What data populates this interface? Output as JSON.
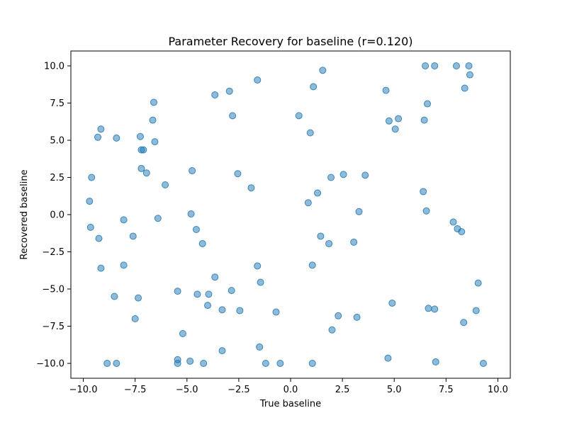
{
  "chart_data": {
    "type": "scatter",
    "title": "Parameter Recovery for baseline (r=0.120)",
    "xlabel": "True baseline",
    "ylabel": "Recovered baseline",
    "xlim": [
      -10.6,
      10.6
    ],
    "ylim": [
      -11.0,
      11.0
    ],
    "xticks": [
      -10.0,
      -7.5,
      -5.0,
      -2.5,
      0.0,
      2.5,
      5.0,
      7.5,
      10.0
    ],
    "yticks": [
      -10.0,
      -7.5,
      -5.0,
      -2.5,
      0.0,
      2.5,
      5.0,
      7.5,
      10.0
    ],
    "xtick_labels": [
      "−10.0",
      "−7.5",
      "−5.0",
      "−2.5",
      "0.0",
      "2.5",
      "5.0",
      "7.5",
      "10.0"
    ],
    "ytick_labels": [
      "−10.0",
      "−7.5",
      "−5.0",
      "−2.5",
      "0.0",
      "2.5",
      "5.0",
      "7.5",
      "10.0"
    ],
    "grid": false,
    "marker_color": "#1f77b4",
    "marker_alpha": 0.5,
    "points": [
      [
        -9.7,
        0.9
      ],
      [
        -9.65,
        -0.85
      ],
      [
        -9.6,
        2.5
      ],
      [
        -9.3,
        5.2
      ],
      [
        -9.25,
        -1.6
      ],
      [
        -9.15,
        5.75
      ],
      [
        -9.15,
        -3.6
      ],
      [
        -8.85,
        -10.0
      ],
      [
        -8.5,
        -5.5
      ],
      [
        -8.4,
        5.15
      ],
      [
        -8.4,
        -10.0
      ],
      [
        -8.05,
        -0.35
      ],
      [
        -8.05,
        -3.4
      ],
      [
        -7.6,
        -1.45
      ],
      [
        -7.5,
        -7.0
      ],
      [
        -7.35,
        -5.6
      ],
      [
        -7.25,
        5.25
      ],
      [
        -7.2,
        4.35
      ],
      [
        -7.1,
        4.35
      ],
      [
        -7.2,
        3.1
      ],
      [
        -6.95,
        2.8
      ],
      [
        -6.65,
        6.35
      ],
      [
        -6.6,
        7.55
      ],
      [
        -6.55,
        4.9
      ],
      [
        -6.4,
        -0.25
      ],
      [
        -6.05,
        2.0
      ],
      [
        -5.45,
        -5.15
      ],
      [
        -5.45,
        -9.75
      ],
      [
        -5.45,
        -10.0
      ],
      [
        -5.2,
        -8.0
      ],
      [
        -4.85,
        -9.85
      ],
      [
        -4.8,
        0.05
      ],
      [
        -4.75,
        2.95
      ],
      [
        -4.55,
        -1.0
      ],
      [
        -4.5,
        -5.35
      ],
      [
        -4.25,
        -1.95
      ],
      [
        -4.2,
        -10.0
      ],
      [
        -4.0,
        -6.1
      ],
      [
        -3.95,
        -5.35
      ],
      [
        -3.65,
        8.05
      ],
      [
        -3.65,
        -4.2
      ],
      [
        -3.3,
        -6.4
      ],
      [
        -3.3,
        -9.15
      ],
      [
        -2.95,
        8.3
      ],
      [
        -2.85,
        -5.1
      ],
      [
        -2.8,
        6.65
      ],
      [
        -2.55,
        2.75
      ],
      [
        -2.45,
        -6.45
      ],
      [
        -1.9,
        1.8
      ],
      [
        -1.6,
        9.05
      ],
      [
        -1.6,
        -3.45
      ],
      [
        -1.5,
        -8.9
      ],
      [
        -1.45,
        -4.55
      ],
      [
        -1.2,
        -10.0
      ],
      [
        -0.7,
        -6.55
      ],
      [
        -0.5,
        -10.0
      ],
      [
        0.4,
        6.65
      ],
      [
        0.85,
        0.8
      ],
      [
        0.95,
        5.5
      ],
      [
        1.05,
        -3.4
      ],
      [
        1.05,
        -10.0
      ],
      [
        1.1,
        8.6
      ],
      [
        1.3,
        1.45
      ],
      [
        1.45,
        -1.45
      ],
      [
        1.55,
        9.7
      ],
      [
        1.85,
        -1.95
      ],
      [
        1.95,
        2.5
      ],
      [
        2.0,
        -7.75
      ],
      [
        2.3,
        -6.8
      ],
      [
        2.55,
        2.7
      ],
      [
        3.05,
        -1.85
      ],
      [
        3.2,
        -6.9
      ],
      [
        3.3,
        0.2
      ],
      [
        3.6,
        2.65
      ],
      [
        4.6,
        8.35
      ],
      [
        4.7,
        -9.65
      ],
      [
        4.75,
        6.3
      ],
      [
        4.9,
        -5.95
      ],
      [
        5.05,
        5.75
      ],
      [
        5.2,
        6.45
      ],
      [
        6.4,
        1.55
      ],
      [
        6.45,
        6.35
      ],
      [
        6.5,
        10.0
      ],
      [
        6.55,
        0.25
      ],
      [
        6.6,
        7.45
      ],
      [
        6.65,
        -6.3
      ],
      [
        6.95,
        -6.35
      ],
      [
        6.95,
        10.0
      ],
      [
        7.0,
        -9.9
      ],
      [
        7.85,
        -0.5
      ],
      [
        8.0,
        10.0
      ],
      [
        8.05,
        -0.95
      ],
      [
        8.25,
        -1.15
      ],
      [
        8.35,
        -7.25
      ],
      [
        8.4,
        8.5
      ],
      [
        8.6,
        10.0
      ],
      [
        8.65,
        9.4
      ],
      [
        8.95,
        -6.45
      ],
      [
        9.05,
        -4.6
      ],
      [
        9.3,
        -10.0
      ]
    ]
  }
}
